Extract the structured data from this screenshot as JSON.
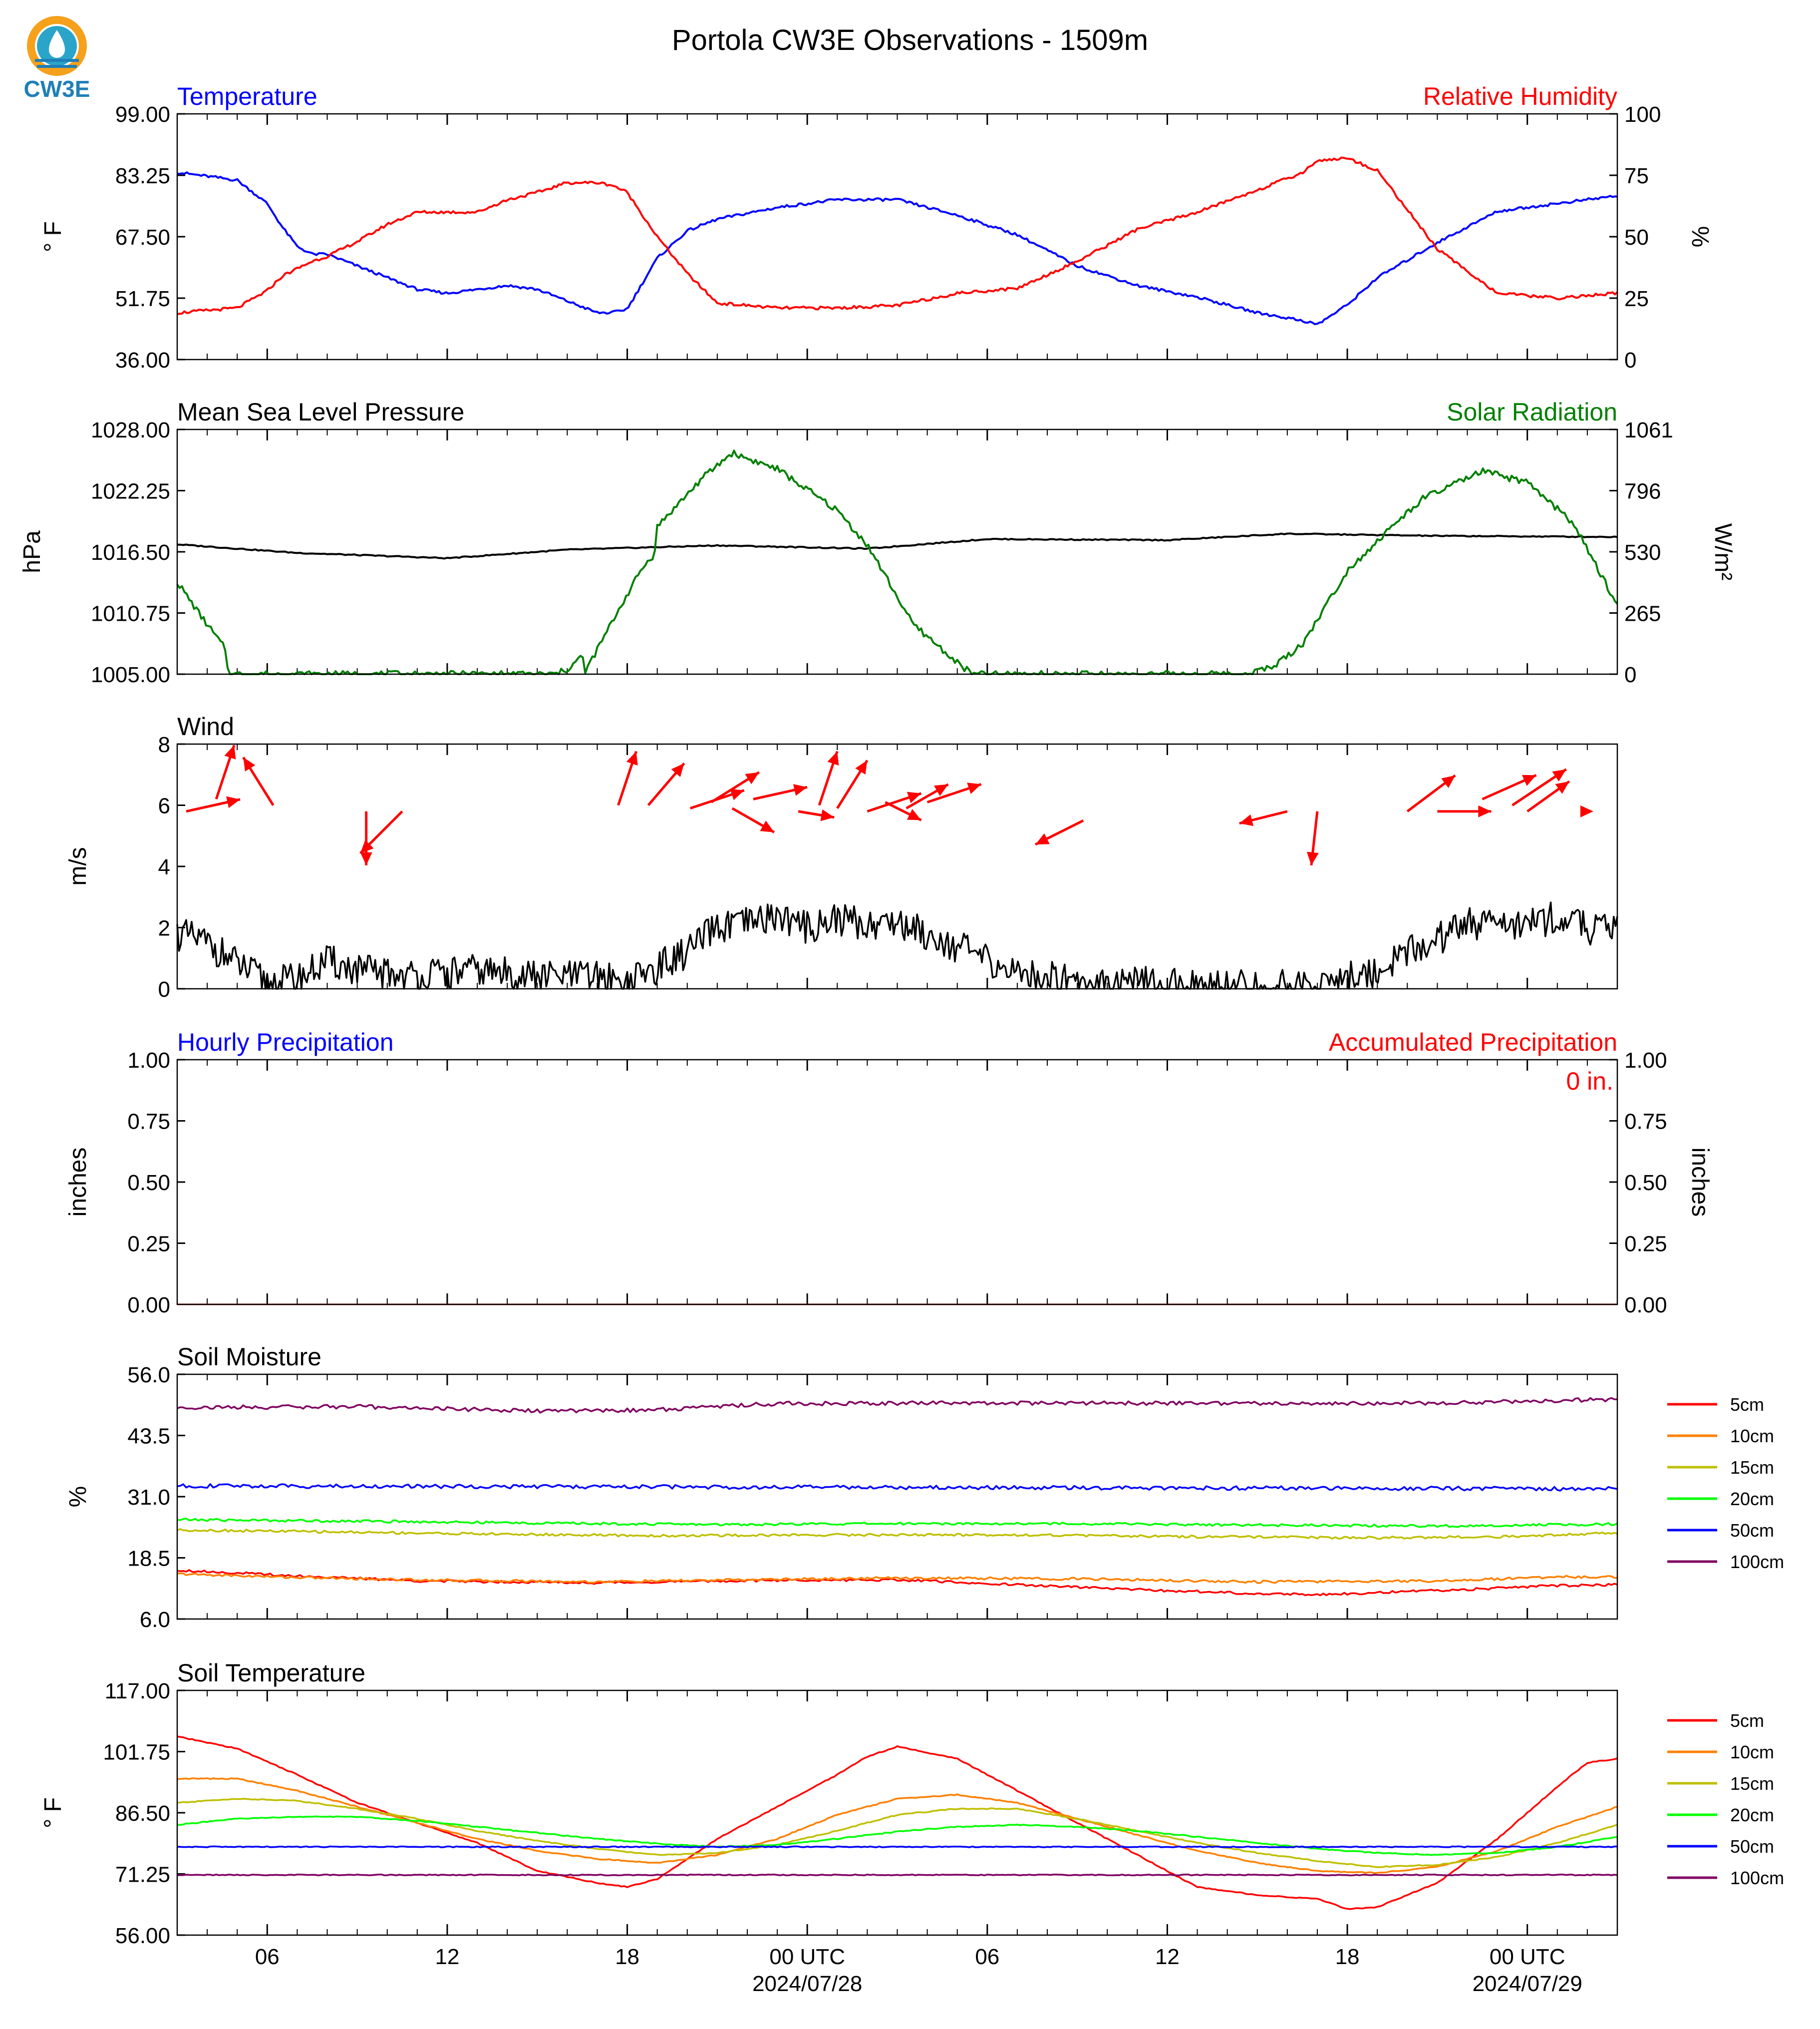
{
  "title": "Portola CW3E Observations - 1509m",
  "logo": {
    "text": "CW3E",
    "colors": {
      "orange": "#f5a11c",
      "blue": "#1f7fb8",
      "teal": "#2aa5c9"
    }
  },
  "time_axis": {
    "tick_labels": [
      "06",
      "12",
      "18",
      "00 UTC",
      "06",
      "12",
      "18",
      "00 UTC"
    ],
    "date_labels": [
      "2024/07/28",
      "2024/07/29"
    ]
  },
  "chart_data": [
    {
      "id": "temperature",
      "type": "line",
      "left_title": "Temperature",
      "left_title_color": "#0000ff",
      "right_title": "Relative Humidity",
      "right_title_color": "#ff0000",
      "ylabel": "° F",
      "ylabel_right": "%",
      "yticks": [
        "99.00",
        "83.25",
        "67.50",
        "51.75",
        "36.00"
      ],
      "yticks_right": [
        "100",
        "75",
        "50",
        "25",
        "0"
      ],
      "ylim": [
        36,
        99
      ],
      "ylim_right": [
        0,
        100
      ],
      "x_hours": [
        0,
        2,
        3,
        3.5,
        4,
        4.5,
        5,
        6,
        7,
        8,
        9,
        10,
        11,
        12,
        13,
        14,
        14.5,
        15,
        16,
        17,
        18,
        20,
        22,
        24,
        26,
        28,
        30,
        32,
        34,
        36,
        37.5,
        38,
        39,
        40,
        42,
        44,
        46,
        48
      ],
      "series": [
        {
          "name": "Temperature",
          "color": "#0000ff",
          "axis": "left",
          "values": [
            84,
            82,
            76,
            70,
            65,
            63,
            63,
            60,
            57,
            54,
            53,
            54,
            55,
            54,
            51,
            48,
            48,
            49,
            62,
            69,
            72,
            75,
            77,
            77,
            73,
            68,
            60,
            55,
            52,
            48,
            46,
            45,
            50,
            57,
            66,
            74,
            76,
            78
          ]
        },
        {
          "name": "Relative Humidity",
          "color": "#ff0000",
          "axis": "right",
          "values": [
            19,
            21,
            28,
            34,
            37,
            40,
            42,
            48,
            55,
            60,
            60,
            60,
            65,
            68,
            72,
            72,
            71,
            68,
            50,
            35,
            23,
            21,
            21,
            22,
            27,
            29,
            40,
            53,
            60,
            69,
            76,
            81,
            82,
            77,
            45,
            27,
            25,
            27
          ]
        }
      ]
    },
    {
      "id": "pressure",
      "type": "line",
      "left_title": "Mean Sea Level Pressure",
      "left_title_color": "#000000",
      "right_title": "Solar Radiation",
      "right_title_color": "#008000",
      "ylabel": "hPa",
      "ylabel_right": "W/m²",
      "yticks": [
        "1028.00",
        "1022.25",
        "1016.50",
        "1010.75",
        "1005.00"
      ],
      "yticks_right": [
        "1061",
        "796",
        "530",
        "265",
        "0"
      ],
      "ylim": [
        1005,
        1028
      ],
      "ylim_right": [
        0,
        1061
      ],
      "series": [
        {
          "name": "Mean Sea Level Pressure",
          "color": "#000000",
          "axis": "left",
          "x_hours": [
            0,
            4,
            9,
            13,
            18,
            23,
            27,
            33,
            37,
            42,
            48
          ],
          "values": [
            1017.2,
            1016.4,
            1015.9,
            1016.7,
            1017.1,
            1016.8,
            1017.7,
            1017.6,
            1018.2,
            1018.0,
            1017.9
          ]
        },
        {
          "name": "Solar Radiation",
          "color": "#008000",
          "axis": "right",
          "x_hours": [
            0,
            0.8,
            1.6,
            1.7,
            12.6,
            13,
            13.5,
            13.6,
            14.8,
            15.5,
            15.9,
            16,
            16.5,
            17.5,
            18.5,
            19,
            20,
            21,
            22,
            23,
            23.5,
            24.5,
            26,
            26.5,
            27.5,
            35.5,
            36.5,
            37.5,
            39,
            40.5,
            41.5,
            42.5,
            43.5,
            45,
            46.5,
            48
          ],
          "values": [
            400,
            250,
            110,
            0,
            0,
            20,
            80,
            10,
            300,
            460,
            520,
            640,
            710,
            850,
            960,
            935,
            890,
            800,
            710,
            560,
            450,
            220,
            50,
            0,
            0,
            0,
            30,
            130,
            450,
            640,
            760,
            820,
            880,
            830,
            660,
            300
          ]
        }
      ]
    },
    {
      "id": "wind",
      "type": "line",
      "left_title": "Wind",
      "left_title_color": "#000000",
      "ylabel": "m/s",
      "yticks": [
        "8",
        "6",
        "4",
        "2",
        "0"
      ],
      "ylim": [
        0,
        8
      ],
      "series": [
        {
          "name": "Wind speed",
          "color": "#000000",
          "x_hours": [
            0,
            1,
            2,
            3,
            4,
            5,
            6,
            8,
            10,
            12,
            14,
            15,
            16,
            17,
            18,
            19,
            20,
            21,
            22,
            23,
            24,
            25,
            26,
            27,
            28,
            30,
            32,
            34,
            36,
            38,
            40,
            41,
            42,
            43,
            44,
            45,
            46,
            47,
            48
          ],
          "values": [
            1.8,
            1.5,
            0.8,
            0.2,
            0.3,
            0.9,
            0.6,
            0.4,
            0.6,
            0.4,
            0.4,
            0.2,
            0.7,
            1.2,
            2.0,
            2.1,
            2.4,
            2.0,
            2.3,
            2.1,
            2.2,
            1.8,
            1.4,
            0.9,
            0.5,
            0.3,
            0.2,
            0.1,
            0.05,
            0.1,
            0.6,
            1.2,
            1.6,
            2.2,
            2.0,
            2.2,
            2.3,
            2.0,
            1.9
          ]
        }
      ],
      "arrows": {
        "color": "#ff0000",
        "x_hours": [
          0.3,
          1.3,
          3.2,
          6.3,
          7.5,
          14.7,
          15.7,
          17.1,
          17.8,
          18.5,
          19.2,
          20.7,
          21.4,
          22.0,
          23.0,
          23.6,
          24.3,
          25.0,
          30.2,
          37.0,
          38.0,
          41.0,
          42.0,
          43.5,
          44.5,
          45.0,
          47.2
        ],
        "y_base": [
          5.8,
          6.2,
          6.0,
          5.8,
          5.8,
          6.0,
          6.0,
          5.9,
          6.1,
          5.9,
          6.2,
          5.8,
          6.0,
          5.9,
          5.8,
          6.1,
          5.9,
          6.1,
          5.5,
          5.8,
          5.8,
          5.8,
          5.8,
          6.2,
          6.0,
          5.8,
          5.8
        ],
        "u": [
          0.9,
          0.3,
          -0.5,
          0.0,
          -0.7,
          0.3,
          0.6,
          0.9,
          0.8,
          0.7,
          0.9,
          0.6,
          0.3,
          0.5,
          0.9,
          0.6,
          0.7,
          0.9,
          -0.8,
          -0.8,
          -0.1,
          0.8,
          0.9,
          0.9,
          0.9,
          0.7,
          0.0
        ],
        "v": [
          0.2,
          0.9,
          0.8,
          -0.9,
          -0.7,
          0.9,
          0.7,
          0.3,
          0.5,
          -0.4,
          0.2,
          -0.1,
          0.9,
          0.8,
          0.3,
          -0.3,
          0.4,
          0.3,
          -0.4,
          -0.2,
          -0.9,
          0.6,
          0.0,
          0.4,
          0.6,
          0.5,
          0.0
        ]
      }
    },
    {
      "id": "precipitation",
      "type": "bar",
      "left_title": "Hourly Precipitation",
      "left_title_color": "#0000ff",
      "right_title": "Accumulated Precipitation",
      "right_title_color": "#ff0000",
      "annotation": "0 in.",
      "ylabel": "inches",
      "ylabel_right": "inches",
      "yticks": [
        "1.00",
        "0.75",
        "0.50",
        "0.25",
        "0.00"
      ],
      "yticks_right": [
        "1.00",
        "0.75",
        "0.50",
        "0.25",
        "0.00"
      ],
      "ylim": [
        0,
        1
      ],
      "ylim_right": [
        0,
        1
      ],
      "series": [
        {
          "name": "Hourly Precipitation",
          "color": "#0000ff",
          "values": []
        },
        {
          "name": "Accumulated Precipitation",
          "color": "#ff0000",
          "x_hours": [
            0,
            48
          ],
          "values": [
            0,
            0
          ]
        }
      ]
    },
    {
      "id": "soil_moisture",
      "type": "line",
      "left_title": "Soil Moisture",
      "left_title_color": "#000000",
      "ylabel": "%",
      "yticks": [
        "56.0",
        "43.5",
        "31.0",
        "18.5",
        "6.0"
      ],
      "ylim": [
        6,
        56
      ],
      "legend": [
        "5cm",
        "10cm",
        "15cm",
        "20cm",
        "50cm",
        "100cm"
      ],
      "series": [
        {
          "name": "5cm",
          "color": "#ff0000",
          "x_hours": [
            0,
            4,
            8,
            14,
            20,
            24,
            28,
            32,
            36,
            38,
            42,
            46,
            48
          ],
          "values": [
            16.0,
            14.8,
            13.8,
            13.4,
            13.9,
            14.0,
            13.0,
            12.0,
            11.2,
            11.0,
            11.8,
            12.8,
            13.0
          ]
        },
        {
          "name": "10cm",
          "color": "#ff8000",
          "x_hours": [
            0,
            4,
            8,
            14,
            20,
            24,
            30,
            36,
            42,
            46,
            48
          ],
          "values": [
            15.2,
            14.5,
            14.0,
            13.6,
            14.1,
            14.4,
            14.2,
            13.6,
            13.8,
            14.6,
            14.6
          ]
        },
        {
          "name": "15cm",
          "color": "#bfbf00",
          "x_hours": [
            0,
            4,
            10,
            16,
            22,
            28,
            34,
            40,
            44,
            48
          ],
          "values": [
            24.2,
            23.9,
            23.4,
            23.0,
            23.2,
            23.2,
            22.8,
            22.6,
            22.8,
            23.6
          ]
        },
        {
          "name": "20cm",
          "color": "#00ff00",
          "x_hours": [
            0,
            6,
            12,
            18,
            24,
            30,
            36,
            42,
            48
          ],
          "values": [
            26.3,
            26.0,
            25.6,
            25.3,
            25.5,
            25.5,
            25.2,
            25.0,
            25.4
          ]
        },
        {
          "name": "50cm",
          "color": "#0000ff",
          "x_hours": [
            0,
            48
          ],
          "values": [
            33.2,
            32.6
          ]
        },
        {
          "name": "100cm",
          "color": "#800060",
          "x_hours": [
            0,
            6,
            12,
            16,
            18,
            20,
            24,
            30,
            36,
            42,
            47,
            48
          ],
          "values": [
            49.2,
            49.4,
            48.5,
            48.7,
            49.5,
            50.0,
            50.1,
            50.1,
            50.1,
            50.1,
            50.8,
            50.8
          ]
        }
      ]
    },
    {
      "id": "soil_temperature",
      "type": "line",
      "left_title": "Soil Temperature",
      "left_title_color": "#000000",
      "ylabel": "° F",
      "yticks": [
        "117.00",
        "101.75",
        "86.50",
        "71.25",
        "56.00"
      ],
      "ylim": [
        56,
        117
      ],
      "legend": [
        "5cm",
        "10cm",
        "15cm",
        "20cm",
        "50cm",
        "100cm"
      ],
      "series": [
        {
          "name": "5cm",
          "color": "#ff0000",
          "x_hours": [
            0,
            2,
            4,
            6,
            8,
            10,
            12,
            14,
            15,
            16,
            17,
            18,
            20,
            22,
            23,
            24,
            26,
            28,
            30,
            32,
            34,
            36,
            38,
            39,
            40,
            42,
            44,
            46,
            47,
            48
          ],
          "values": [
            105.5,
            102.5,
            96.0,
            89.0,
            84.0,
            79.0,
            72.0,
            69.0,
            68.0,
            70.0,
            75.0,
            80.0,
            88.0,
            96.0,
            100.5,
            103.0,
            100.0,
            92.0,
            84.0,
            76.0,
            68.0,
            66.0,
            65.0,
            62.5,
            63.0,
            69.0,
            80.0,
            93.0,
            99.0,
            100.0
          ]
        },
        {
          "name": "10cm",
          "color": "#ff8000",
          "x_hours": [
            0,
            2,
            4,
            6,
            8,
            10,
            12,
            14,
            16,
            18,
            20,
            22,
            24,
            26,
            28,
            30,
            32,
            34,
            36,
            38,
            40,
            42,
            44,
            46,
            48
          ],
          "values": [
            95.0,
            95.0,
            92.0,
            88.0,
            84.0,
            80.0,
            77.0,
            75.0,
            74.0,
            76.0,
            80.0,
            86.0,
            90.0,
            91.0,
            89.0,
            85.0,
            81.0,
            77.0,
            74.0,
            72.0,
            71.5,
            73.0,
            77.0,
            83.0,
            88.0
          ]
        },
        {
          "name": "15cm",
          "color": "#bfbf00",
          "x_hours": [
            0,
            2,
            4,
            6,
            8,
            10,
            12,
            14,
            16,
            18,
            20,
            22,
            24,
            26,
            28,
            30,
            32,
            34,
            36,
            38,
            40,
            42,
            44,
            46,
            48
          ],
          "values": [
            89.0,
            90.0,
            89.5,
            87.5,
            85.0,
            82.0,
            79.5,
            77.5,
            76.0,
            76.5,
            78.5,
            82.0,
            86.0,
            87.5,
            87.5,
            85.0,
            82.0,
            79.0,
            76.5,
            74.5,
            73.0,
            73.5,
            75.5,
            79.0,
            83.5
          ]
        },
        {
          "name": "20cm",
          "color": "#00ff00",
          "x_hours": [
            0,
            2,
            4,
            6,
            8,
            10,
            12,
            14,
            16,
            18,
            20,
            22,
            24,
            26,
            28,
            30,
            32,
            34,
            36,
            38,
            40,
            42,
            44,
            46,
            48
          ],
          "values": [
            83.5,
            85.0,
            85.5,
            85.5,
            84.5,
            83.0,
            81.5,
            80.0,
            78.8,
            78.0,
            78.5,
            80.0,
            81.8,
            83.0,
            83.5,
            83.0,
            82.0,
            80.5,
            79.0,
            77.5,
            76.5,
            76.0,
            76.5,
            78.0,
            80.5
          ]
        },
        {
          "name": "50cm",
          "color": "#0000ff",
          "x_hours": [
            0,
            48
          ],
          "values": [
            78.0,
            78.0
          ]
        },
        {
          "name": "100cm",
          "color": "#800060",
          "x_hours": [
            0,
            48
          ],
          "values": [
            71.0,
            71.0
          ]
        }
      ]
    }
  ]
}
